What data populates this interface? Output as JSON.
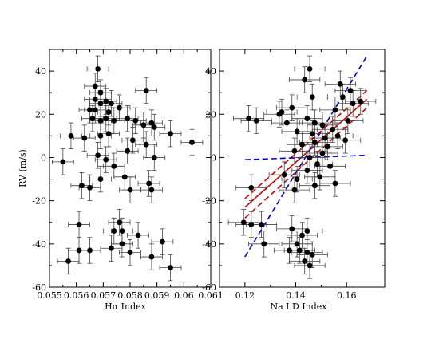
{
  "chart_data": [
    {
      "type": "scatter",
      "title": "",
      "xlabel": "Hα Index",
      "ylabel": "RV (m/s)",
      "xlim": [
        0.055,
        0.061
      ],
      "ylim": [
        -60,
        50
      ],
      "xticks": [
        0.055,
        0.056,
        0.057,
        0.058,
        0.059,
        0.06,
        0.061
      ],
      "xtick_labels": [
        "0.055",
        "0.056",
        "0.057",
        "0.058",
        "0.059",
        "0.06",
        "0.061"
      ],
      "yticks": [
        -60,
        -40,
        -20,
        0,
        20,
        40
      ],
      "ytick_labels": [
        "-60",
        "-40",
        "-20",
        "0",
        "20",
        "40"
      ],
      "error_bars": true,
      "points": [
        {
          "x": 0.0568,
          "y": 41,
          "xerr": 0.0004,
          "yerr": 6
        },
        {
          "x": 0.0567,
          "y": 33,
          "xerr": 0.0004,
          "yerr": 6
        },
        {
          "x": 0.0569,
          "y": 30,
          "xerr": 0.0004,
          "yerr": 6
        },
        {
          "x": 0.0567,
          "y": 27,
          "xerr": 0.0004,
          "yerr": 6
        },
        {
          "x": 0.0569,
          "y": 25,
          "xerr": 0.0004,
          "yerr": 6
        },
        {
          "x": 0.0571,
          "y": 26,
          "xerr": 0.0004,
          "yerr": 6
        },
        {
          "x": 0.0573,
          "y": 25,
          "xerr": 0.0004,
          "yerr": 6
        },
        {
          "x": 0.0565,
          "y": 22,
          "xerr": 0.0004,
          "yerr": 6
        },
        {
          "x": 0.0567,
          "y": 22,
          "xerr": 0.0004,
          "yerr": 6
        },
        {
          "x": 0.0572,
          "y": 21,
          "xerr": 0.0004,
          "yerr": 6
        },
        {
          "x": 0.0576,
          "y": 23,
          "xerr": 0.0004,
          "yerr": 6
        },
        {
          "x": 0.0586,
          "y": 31,
          "xerr": 0.0004,
          "yerr": 6
        },
        {
          "x": 0.0566,
          "y": 18,
          "xerr": 0.0004,
          "yerr": 6
        },
        {
          "x": 0.0569,
          "y": 17,
          "xerr": 0.0004,
          "yerr": 6
        },
        {
          "x": 0.0571,
          "y": 18,
          "xerr": 0.0004,
          "yerr": 6
        },
        {
          "x": 0.0574,
          "y": 17,
          "xerr": 0.0004,
          "yerr": 6
        },
        {
          "x": 0.0579,
          "y": 18,
          "xerr": 0.0004,
          "yerr": 6
        },
        {
          "x": 0.0582,
          "y": 17,
          "xerr": 0.0004,
          "yerr": 6
        },
        {
          "x": 0.0585,
          "y": 15,
          "xerr": 0.0004,
          "yerr": 6
        },
        {
          "x": 0.0589,
          "y": 14,
          "xerr": 0.0004,
          "yerr": 6
        },
        {
          "x": 0.0588,
          "y": 16,
          "xerr": 0.0004,
          "yerr": 6
        },
        {
          "x": 0.0595,
          "y": 11,
          "xerr": 0.0004,
          "yerr": 6
        },
        {
          "x": 0.0603,
          "y": 7,
          "xerr": 0.0004,
          "yerr": 6
        },
        {
          "x": 0.0572,
          "y": 11,
          "xerr": 0.0004,
          "yerr": 6
        },
        {
          "x": 0.0569,
          "y": 10,
          "xerr": 0.0004,
          "yerr": 6
        },
        {
          "x": 0.0563,
          "y": 9,
          "xerr": 0.0004,
          "yerr": 6
        },
        {
          "x": 0.0558,
          "y": 10,
          "xerr": 0.0004,
          "yerr": 6
        },
        {
          "x": 0.0581,
          "y": 8,
          "xerr": 0.0004,
          "yerr": 6
        },
        {
          "x": 0.0586,
          "y": 6,
          "xerr": 0.0004,
          "yerr": 6
        },
        {
          "x": 0.0579,
          "y": 3,
          "xerr": 0.0004,
          "yerr": 6
        },
        {
          "x": 0.0589,
          "y": 0,
          "xerr": 0.0004,
          "yerr": 6
        },
        {
          "x": 0.0568,
          "y": 1,
          "xerr": 0.0004,
          "yerr": 6
        },
        {
          "x": 0.0571,
          "y": -1,
          "xerr": 0.0004,
          "yerr": 6
        },
        {
          "x": 0.0555,
          "y": -2,
          "xerr": 0.0004,
          "yerr": 6
        },
        {
          "x": 0.0574,
          "y": -4,
          "xerr": 0.0004,
          "yerr": 6
        },
        {
          "x": 0.0578,
          "y": -9,
          "xerr": 0.0004,
          "yerr": 6
        },
        {
          "x": 0.0569,
          "y": -10,
          "xerr": 0.0004,
          "yerr": 6
        },
        {
          "x": 0.0562,
          "y": -13,
          "xerr": 0.0004,
          "yerr": 6
        },
        {
          "x": 0.0565,
          "y": -14,
          "xerr": 0.0004,
          "yerr": 6
        },
        {
          "x": 0.058,
          "y": -15,
          "xerr": 0.0004,
          "yerr": 6
        },
        {
          "x": 0.0587,
          "y": -12,
          "xerr": 0.0004,
          "yerr": 6
        },
        {
          "x": 0.0588,
          "y": -15,
          "xerr": 0.0004,
          "yerr": 6
        },
        {
          "x": 0.0561,
          "y": -31,
          "xerr": 0.0004,
          "yerr": 6
        },
        {
          "x": 0.0576,
          "y": -30,
          "xerr": 0.0004,
          "yerr": 6
        },
        {
          "x": 0.0574,
          "y": -34,
          "xerr": 0.0004,
          "yerr": 6
        },
        {
          "x": 0.0577,
          "y": -34,
          "xerr": 0.0004,
          "yerr": 6
        },
        {
          "x": 0.0583,
          "y": -36,
          "xerr": 0.0004,
          "yerr": 6
        },
        {
          "x": 0.0577,
          "y": -40,
          "xerr": 0.0004,
          "yerr": 6
        },
        {
          "x": 0.0592,
          "y": -39,
          "xerr": 0.0004,
          "yerr": 6
        },
        {
          "x": 0.0561,
          "y": -43,
          "xerr": 0.0004,
          "yerr": 6
        },
        {
          "x": 0.0565,
          "y": -43,
          "xerr": 0.0004,
          "yerr": 6
        },
        {
          "x": 0.0573,
          "y": -42,
          "xerr": 0.0004,
          "yerr": 6
        },
        {
          "x": 0.058,
          "y": -44,
          "xerr": 0.0004,
          "yerr": 6
        },
        {
          "x": 0.0588,
          "y": -46,
          "xerr": 0.0004,
          "yerr": 6
        },
        {
          "x": 0.0557,
          "y": -48,
          "xerr": 0.0004,
          "yerr": 6
        },
        {
          "x": 0.0595,
          "y": -51,
          "xerr": 0.0004,
          "yerr": 6
        }
      ]
    },
    {
      "type": "scatter",
      "title": "",
      "xlabel": "Na I D Index",
      "ylabel": "",
      "xlim": [
        0.11,
        0.175
      ],
      "ylim": [
        -60,
        50
      ],
      "xticks": [
        0.12,
        0.14,
        0.16
      ],
      "xtick_labels": [
        "0.12",
        "0.14",
        "0.16"
      ],
      "yticks": [
        -60,
        -40,
        -20,
        0,
        20,
        40
      ],
      "ytick_labels": [
        "-60",
        "-40",
        "-20",
        "0",
        "20",
        "40"
      ],
      "error_bars": true,
      "points": [
        {
          "x": 0.1455,
          "y": 41,
          "xerr": 0.006,
          "yerr": 6
        },
        {
          "x": 0.1435,
          "y": 36,
          "xerr": 0.006,
          "yerr": 6
        },
        {
          "x": 0.1575,
          "y": 34,
          "xerr": 0.006,
          "yerr": 6
        },
        {
          "x": 0.1615,
          "y": 31,
          "xerr": 0.006,
          "yerr": 6
        },
        {
          "x": 0.1465,
          "y": 28,
          "xerr": 0.006,
          "yerr": 6
        },
        {
          "x": 0.1585,
          "y": 28,
          "xerr": 0.006,
          "yerr": 6
        },
        {
          "x": 0.1655,
          "y": 26,
          "xerr": 0.006,
          "yerr": 6
        },
        {
          "x": 0.1625,
          "y": 25,
          "xerr": 0.006,
          "yerr": 6
        },
        {
          "x": 0.1385,
          "y": 23,
          "xerr": 0.006,
          "yerr": 6
        },
        {
          "x": 0.1345,
          "y": 21,
          "xerr": 0.006,
          "yerr": 6
        },
        {
          "x": 0.1335,
          "y": 20,
          "xerr": 0.006,
          "yerr": 6
        },
        {
          "x": 0.1555,
          "y": 22,
          "xerr": 0.006,
          "yerr": 6
        },
        {
          "x": 0.1215,
          "y": 18,
          "xerr": 0.006,
          "yerr": 6
        },
        {
          "x": 0.1245,
          "y": 17,
          "xerr": 0.006,
          "yerr": 6
        },
        {
          "x": 0.1445,
          "y": 18,
          "xerr": 0.006,
          "yerr": 6
        },
        {
          "x": 0.1475,
          "y": 16,
          "xerr": 0.006,
          "yerr": 6
        },
        {
          "x": 0.1505,
          "y": 15,
          "xerr": 0.006,
          "yerr": 6
        },
        {
          "x": 0.1365,
          "y": 16,
          "xerr": 0.006,
          "yerr": 6
        },
        {
          "x": 0.1605,
          "y": 17,
          "xerr": 0.006,
          "yerr": 6
        },
        {
          "x": 0.1405,
          "y": 12,
          "xerr": 0.006,
          "yerr": 6
        },
        {
          "x": 0.1465,
          "y": 11,
          "xerr": 0.006,
          "yerr": 6
        },
        {
          "x": 0.1545,
          "y": 13,
          "xerr": 0.006,
          "yerr": 6
        },
        {
          "x": 0.1515,
          "y": 9,
          "xerr": 0.006,
          "yerr": 6
        },
        {
          "x": 0.1565,
          "y": 10,
          "xerr": 0.006,
          "yerr": 6
        },
        {
          "x": 0.1475,
          "y": 7,
          "xerr": 0.006,
          "yerr": 6
        },
        {
          "x": 0.1525,
          "y": 5,
          "xerr": 0.006,
          "yerr": 6
        },
        {
          "x": 0.1425,
          "y": 6,
          "xerr": 0.006,
          "yerr": 6
        },
        {
          "x": 0.1595,
          "y": 8,
          "xerr": 0.006,
          "yerr": 6
        },
        {
          "x": 0.1395,
          "y": 3,
          "xerr": 0.006,
          "yerr": 6
        },
        {
          "x": 0.1505,
          "y": 2,
          "xerr": 0.006,
          "yerr": 6
        },
        {
          "x": 0.1455,
          "y": 0,
          "xerr": 0.006,
          "yerr": 6
        },
        {
          "x": 0.1485,
          "y": -3,
          "xerr": 0.006,
          "yerr": 6
        },
        {
          "x": 0.1445,
          "y": -6,
          "xerr": 0.006,
          "yerr": 6
        },
        {
          "x": 0.1535,
          "y": -4,
          "xerr": 0.006,
          "yerr": 6
        },
        {
          "x": 0.1355,
          "y": -8,
          "xerr": 0.006,
          "yerr": 6
        },
        {
          "x": 0.1405,
          "y": -10,
          "xerr": 0.006,
          "yerr": 6
        },
        {
          "x": 0.1495,
          "y": -9,
          "xerr": 0.006,
          "yerr": 6
        },
        {
          "x": 0.1225,
          "y": -14,
          "xerr": 0.006,
          "yerr": 6
        },
        {
          "x": 0.1395,
          "y": -15,
          "xerr": 0.006,
          "yerr": 6
        },
        {
          "x": 0.1475,
          "y": -13,
          "xerr": 0.006,
          "yerr": 6
        },
        {
          "x": 0.1555,
          "y": -12,
          "xerr": 0.006,
          "yerr": 6
        },
        {
          "x": 0.1195,
          "y": -30,
          "xerr": 0.006,
          "yerr": 6
        },
        {
          "x": 0.1225,
          "y": -31,
          "xerr": 0.006,
          "yerr": 6
        },
        {
          "x": 0.1265,
          "y": -31,
          "xerr": 0.006,
          "yerr": 6
        },
        {
          "x": 0.1385,
          "y": -33,
          "xerr": 0.006,
          "yerr": 6
        },
        {
          "x": 0.1425,
          "y": -36,
          "xerr": 0.006,
          "yerr": 6
        },
        {
          "x": 0.1445,
          "y": -34,
          "xerr": 0.006,
          "yerr": 6
        },
        {
          "x": 0.1275,
          "y": -40,
          "xerr": 0.006,
          "yerr": 6
        },
        {
          "x": 0.1405,
          "y": -40,
          "xerr": 0.006,
          "yerr": 6
        },
        {
          "x": 0.1375,
          "y": -43,
          "xerr": 0.006,
          "yerr": 6
        },
        {
          "x": 0.1415,
          "y": -43,
          "xerr": 0.006,
          "yerr": 6
        },
        {
          "x": 0.1445,
          "y": -44,
          "xerr": 0.006,
          "yerr": 6
        },
        {
          "x": 0.1465,
          "y": -45,
          "xerr": 0.006,
          "yerr": 6
        },
        {
          "x": 0.1435,
          "y": -48,
          "xerr": 0.006,
          "yerr": 6
        },
        {
          "x": 0.1455,
          "y": -50,
          "xerr": 0.006,
          "yerr": 6
        }
      ],
      "lines": [
        {
          "kind": "fit",
          "style": "solid",
          "color": "#cc0000",
          "x": [
            0.12,
            0.168
          ],
          "y": [
            -23,
            27
          ]
        },
        {
          "kind": "inner-bound",
          "style": "dashed",
          "color": "#cc0000",
          "x": [
            0.12,
            0.168
          ],
          "y": [
            -28,
            23
          ]
        },
        {
          "kind": "inner-bound",
          "style": "dashed",
          "color": "#cc0000",
          "x": [
            0.12,
            0.168
          ],
          "y": [
            -19,
            31
          ]
        },
        {
          "kind": "outer-bound",
          "style": "dashed",
          "color": "#0000cc",
          "x": [
            0.12,
            0.168
          ],
          "y": [
            -46,
            47
          ]
        },
        {
          "kind": "outer-bound",
          "style": "dashed",
          "color": "#0000cc",
          "x": [
            0.12,
            0.168
          ],
          "y": [
            -1,
            1
          ]
        }
      ]
    }
  ]
}
